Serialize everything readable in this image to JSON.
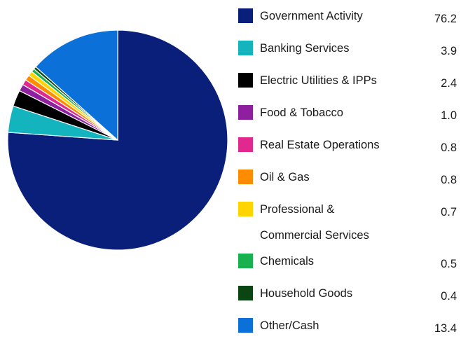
{
  "chart_data": {
    "type": "pie",
    "title": "",
    "slices": [
      {
        "label": "Government Activity",
        "value_text": "76.2",
        "value": 76.2,
        "color": "#0a1f7a"
      },
      {
        "label": "Banking Services",
        "value_text": "3.9",
        "value": 3.9,
        "color": "#13b4bd"
      },
      {
        "label": "Electric Utilities & IPPs",
        "value_text": "2.4",
        "value": 2.4,
        "color": "#000000"
      },
      {
        "label": "Food & Tobacco",
        "value_text": "1.0",
        "value": 1.0,
        "color": "#8e1f9f"
      },
      {
        "label": "Real Estate Operations",
        "value_text": "0.8",
        "value": 0.8,
        "color": "#e0288f"
      },
      {
        "label": "Oil & Gas",
        "value_text": "0.8",
        "value": 0.8,
        "color": "#ff8c00"
      },
      {
        "label": "Professional & Commercial Services",
        "label_lines": [
          "Professional &",
          "Commercial Services"
        ],
        "value_text": "0.7",
        "value": 0.7,
        "color": "#ffd500"
      },
      {
        "label": "Chemicals",
        "value_text": "0.5",
        "value": 0.5,
        "color": "#18b14f"
      },
      {
        "label": "Household Goods",
        "value_text": "0.4",
        "value": 0.4,
        "color": "#0b4512"
      },
      {
        "label": "Other/Cash",
        "value_text": "13.4",
        "value": 13.4,
        "color": "#0c70d9"
      }
    ],
    "legend_placement": "right"
  }
}
